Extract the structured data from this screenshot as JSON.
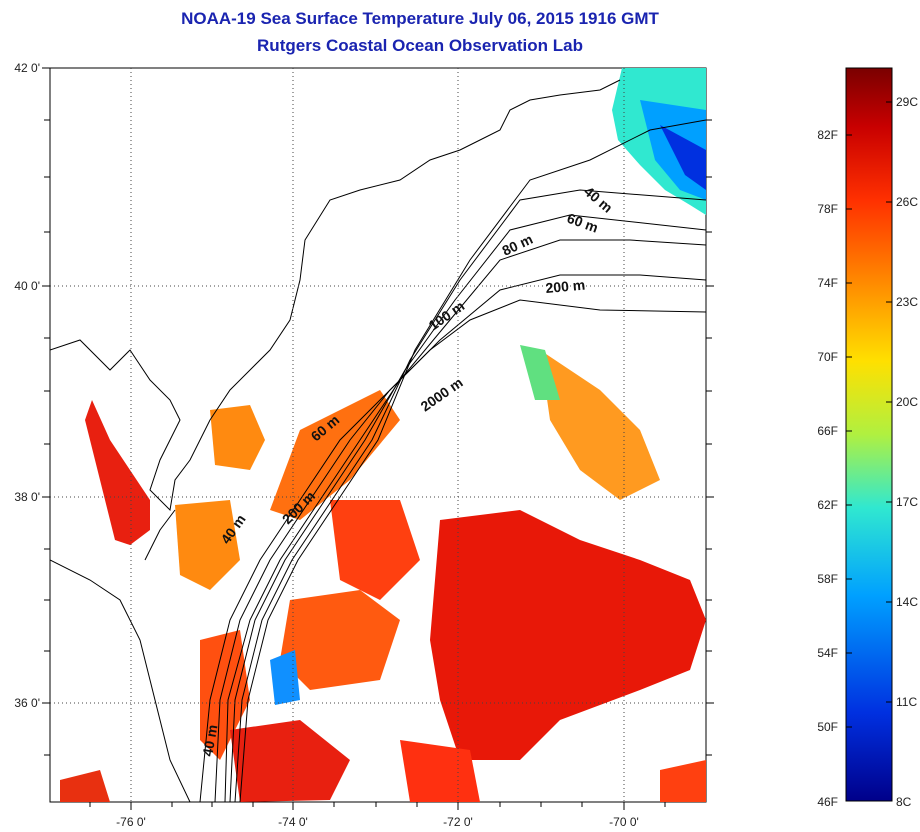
{
  "title": {
    "line1": "NOAA-19 Sea Surface Temperature July 06, 2015 1916 GMT",
    "line2": "Rutgers Coastal Ocean Observation Lab"
  },
  "map": {
    "lat_ticks": [
      "42 0'",
      "40 0'",
      "38 0'",
      "36 0'"
    ],
    "lon_ticks": [
      "-76 0'",
      "-74 0'",
      "-72 0'",
      "-70 0'"
    ],
    "contour_labels": [
      "40 m",
      "60 m",
      "80 m",
      "200 m",
      "100 m",
      "2000 m",
      "60 m",
      "200 m",
      "40 m",
      "40 m"
    ]
  },
  "colorbar": {
    "fahrenheit": [
      "82F",
      "78F",
      "74F",
      "70F",
      "66F",
      "62F",
      "58F",
      "54F",
      "50F",
      "46F"
    ],
    "celsius": [
      "29C",
      "26C",
      "23C",
      "20C",
      "17C",
      "14C",
      "11C",
      "8C"
    ],
    "colors": [
      "#7a0000",
      "#c80000",
      "#ff3000",
      "#ff9000",
      "#ffe000",
      "#b0f040",
      "#30e8d0",
      "#00a0ff",
      "#0030e0",
      "#00008a"
    ]
  }
}
